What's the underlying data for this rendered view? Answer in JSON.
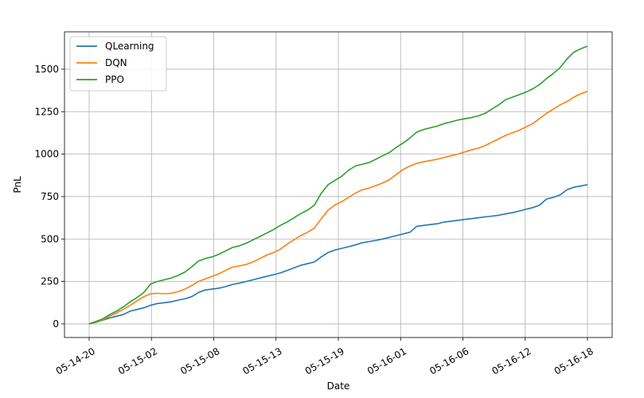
{
  "chart_data": {
    "type": "line",
    "title": "",
    "xlabel": "Date",
    "ylabel": "PnL",
    "x_ticks": [
      "05-14-20",
      "05-15-02",
      "05-15-08",
      "05-15-13",
      "05-15-19",
      "05-16-01",
      "05-16-06",
      "05-16-12",
      "05-16-18"
    ],
    "yticks": [
      0,
      250,
      500,
      750,
      1000,
      1250,
      1500
    ],
    "ylim": [
      -80,
      1720
    ],
    "grid": true,
    "legend_position": "top-left",
    "series": [
      {
        "name": "QLearning",
        "color": "#1f77b4",
        "values": [
          0,
          10,
          22,
          35,
          45,
          55,
          75,
          85,
          95,
          110,
          120,
          125,
          130,
          140,
          148,
          160,
          185,
          200,
          205,
          210,
          220,
          232,
          240,
          250,
          260,
          270,
          280,
          290,
          300,
          315,
          330,
          345,
          355,
          365,
          395,
          420,
          435,
          445,
          455,
          465,
          478,
          485,
          492,
          500,
          510,
          520,
          530,
          540,
          575,
          580,
          585,
          590,
          600,
          605,
          610,
          615,
          620,
          625,
          630,
          635,
          640,
          648,
          655,
          665,
          675,
          685,
          700,
          735,
          745,
          760,
          790,
          805,
          812,
          820
        ]
      },
      {
        "name": "DQN",
        "color": "#ff7f0e",
        "values": [
          0,
          12,
          25,
          45,
          65,
          85,
          110,
          135,
          160,
          178,
          180,
          178,
          180,
          190,
          205,
          225,
          250,
          265,
          280,
          295,
          315,
          335,
          342,
          350,
          365,
          385,
          405,
          420,
          440,
          470,
          495,
          520,
          540,
          565,
          620,
          670,
          700,
          720,
          745,
          770,
          790,
          800,
          815,
          830,
          850,
          880,
          910,
          930,
          945,
          955,
          962,
          970,
          980,
          990,
          1000,
          1012,
          1025,
          1035,
          1050,
          1070,
          1090,
          1110,
          1125,
          1140,
          1160,
          1180,
          1210,
          1240,
          1265,
          1290,
          1310,
          1335,
          1355,
          1370
        ]
      },
      {
        "name": "PPO",
        "color": "#2ca02c",
        "values": [
          0,
          15,
          30,
          55,
          75,
          100,
          130,
          155,
          185,
          235,
          250,
          260,
          270,
          285,
          305,
          335,
          370,
          385,
          395,
          410,
          430,
          450,
          460,
          475,
          495,
          515,
          535,
          555,
          580,
          600,
          625,
          650,
          670,
          700,
          770,
          820,
          845,
          870,
          905,
          930,
          940,
          950,
          970,
          990,
          1010,
          1040,
          1065,
          1095,
          1130,
          1145,
          1155,
          1165,
          1180,
          1190,
          1200,
          1208,
          1215,
          1225,
          1240,
          1265,
          1290,
          1320,
          1335,
          1350,
          1365,
          1385,
          1410,
          1445,
          1475,
          1510,
          1560,
          1600,
          1620,
          1635
        ]
      }
    ]
  }
}
